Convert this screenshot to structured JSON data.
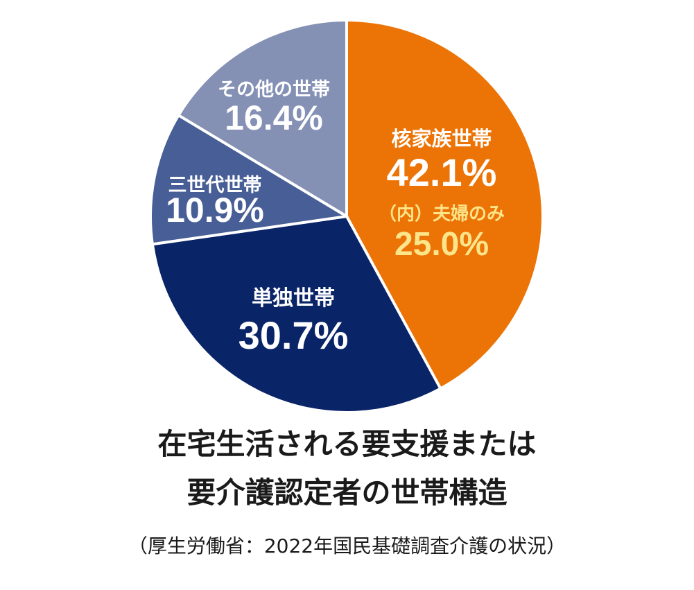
{
  "chart_data": {
    "type": "pie",
    "title_lines": [
      "在宅生活される要支援または",
      "要介護認定者の世帯構造"
    ],
    "source": "（厚生労働省：2022年国民基礎調査介護の状況）",
    "slices": [
      {
        "label": "核家族世帯",
        "value": 42.1,
        "value_label": "42.1%",
        "color": "#ec7305",
        "sub_label": "（内）夫婦のみ",
        "sub_value": 25.0,
        "sub_value_label": "25.0%",
        "sub_color": "#fde58a"
      },
      {
        "label": "単独世帯",
        "value": 30.7,
        "value_label": "30.7%",
        "color": "#0a2468"
      },
      {
        "label": "三世代世帯",
        "value": 10.9,
        "value_label": "10.9%",
        "color": "#475e96"
      },
      {
        "label": "その他の世帯",
        "value": 16.4,
        "value_label": "16.4%",
        "color": "#8491b5"
      }
    ],
    "label_color": "#ffffff"
  }
}
